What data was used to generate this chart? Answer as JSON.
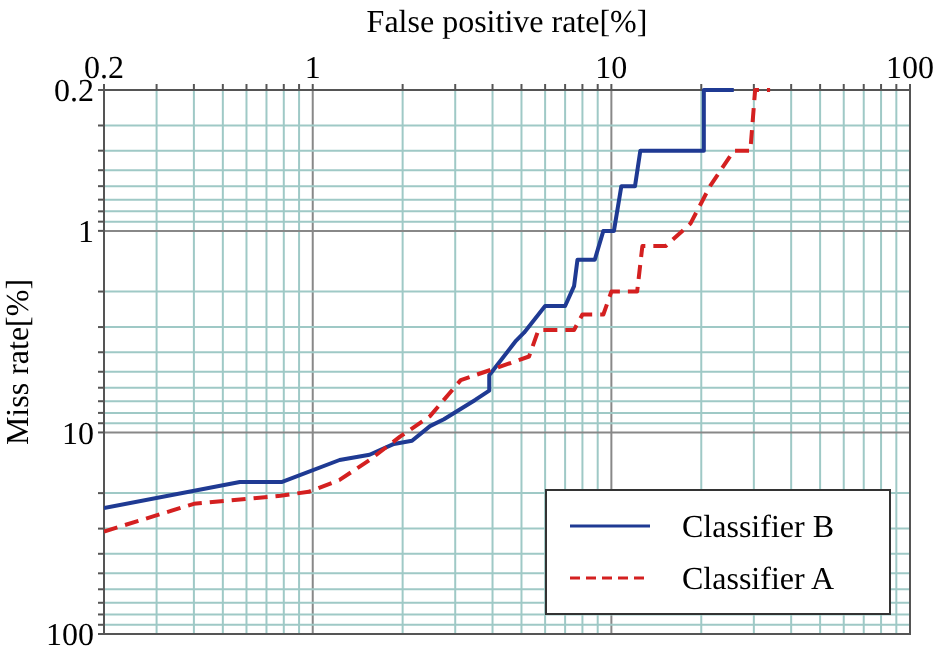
{
  "chart_data": {
    "type": "line",
    "xlabel": "False positive rate[%]",
    "ylabel": "Miss rate[%]",
    "log": "xy",
    "xlim": [
      0.2,
      100
    ],
    "ylim": [
      100,
      0.2
    ],
    "xticks": [
      0.2,
      {
        "value": 0.3,
        "label": null
      },
      {
        "value": 0.4,
        "label": null
      },
      {
        "value": 0.5,
        "label": null
      },
      {
        "value": 0.6,
        "label": null
      },
      {
        "value": 0.7,
        "label": null
      },
      {
        "value": 0.8,
        "label": null
      },
      {
        "value": 0.9,
        "label": null
      },
      1,
      {
        "value": 2,
        "label": null
      },
      {
        "value": 3,
        "label": null
      },
      {
        "value": 4,
        "label": null
      },
      {
        "value": 5,
        "label": null
      },
      {
        "value": 6,
        "label": null
      },
      {
        "value": 7,
        "label": null
      },
      {
        "value": 8,
        "label": null
      },
      {
        "value": 9,
        "label": null
      },
      10,
      {
        "value": 20,
        "label": null
      },
      {
        "value": 30,
        "label": null
      },
      {
        "value": 40,
        "label": null
      },
      {
        "value": 50,
        "label": null
      },
      {
        "value": 60,
        "label": null
      },
      {
        "value": 70,
        "label": null
      },
      {
        "value": 80,
        "label": null
      },
      {
        "value": 90,
        "label": null
      },
      100
    ],
    "yticks": [
      0.2,
      {
        "value": 0.3,
        "label": null
      },
      {
        "value": 0.4,
        "label": null
      },
      {
        "value": 0.5,
        "label": null
      },
      {
        "value": 0.6,
        "label": null
      },
      {
        "value": 0.7,
        "label": null
      },
      {
        "value": 0.8,
        "label": null
      },
      {
        "value": 0.9,
        "label": null
      },
      1,
      {
        "value": 2,
        "label": null
      },
      {
        "value": 3,
        "label": null
      },
      {
        "value": 4,
        "label": null
      },
      {
        "value": 5,
        "label": null
      },
      {
        "value": 6,
        "label": null
      },
      {
        "value": 7,
        "label": null
      },
      {
        "value": 8,
        "label": null
      },
      {
        "value": 9,
        "label": null
      },
      10,
      {
        "value": 20,
        "label": null
      },
      {
        "value": 30,
        "label": null
      },
      {
        "value": 40,
        "label": null
      },
      {
        "value": 50,
        "label": null
      },
      {
        "value": 60,
        "label": null
      },
      {
        "value": 70,
        "label": null
      },
      {
        "value": 80,
        "label": null
      },
      {
        "value": 90,
        "label": null
      },
      100
    ],
    "grid": true,
    "legend": "bottom right",
    "series": [
      {
        "name": "Classifier B",
        "color": "#1f3a93",
        "line_style": "solid",
        "x": [
          0.2,
          0.57,
          0.79,
          1.23,
          1.55,
          1.87,
          2.15,
          2.47,
          2.75,
          3.5,
          3.9,
          3.9,
          4.8,
          5.1,
          6.0,
          7.0,
          7.5,
          7.7,
          8.8,
          9.4,
          10.2,
          10.8,
          12.0,
          12.5,
          20.4,
          20.4,
          25.7
        ],
        "values": [
          23.7,
          17.6,
          17.6,
          13.7,
          12.9,
          11.4,
          11,
          9.3,
          8.6,
          6.9,
          6.2,
          5.2,
          3.5,
          3.2,
          2.36,
          2.36,
          1.88,
          1.39,
          1.39,
          1.0,
          1.0,
          0.6,
          0.6,
          0.4,
          0.4,
          0.2,
          0.2
        ]
      },
      {
        "name": "Classifier A",
        "color": "#d42020",
        "line_style": "dashed",
        "x": [
          0.2,
          0.4,
          0.78,
          0.97,
          1.23,
          1.55,
          1.96,
          2.47,
          3.13,
          4.1,
          5.3,
          5.7,
          7.5,
          8.0,
          9.4,
          10,
          12.2,
          12.7,
          15.2,
          18.4,
          21.4,
          25.7,
          29.2,
          30.3,
          34
        ],
        "values": [
          31,
          22.6,
          20.6,
          19.7,
          17.2,
          13.7,
          10.5,
          8.3,
          5.5,
          4.8,
          4.2,
          3.1,
          3.1,
          2.6,
          2.6,
          2.0,
          2.0,
          1.19,
          1.19,
          0.92,
          0.6,
          0.4,
          0.4,
          0.2,
          0.2
        ]
      }
    ]
  }
}
